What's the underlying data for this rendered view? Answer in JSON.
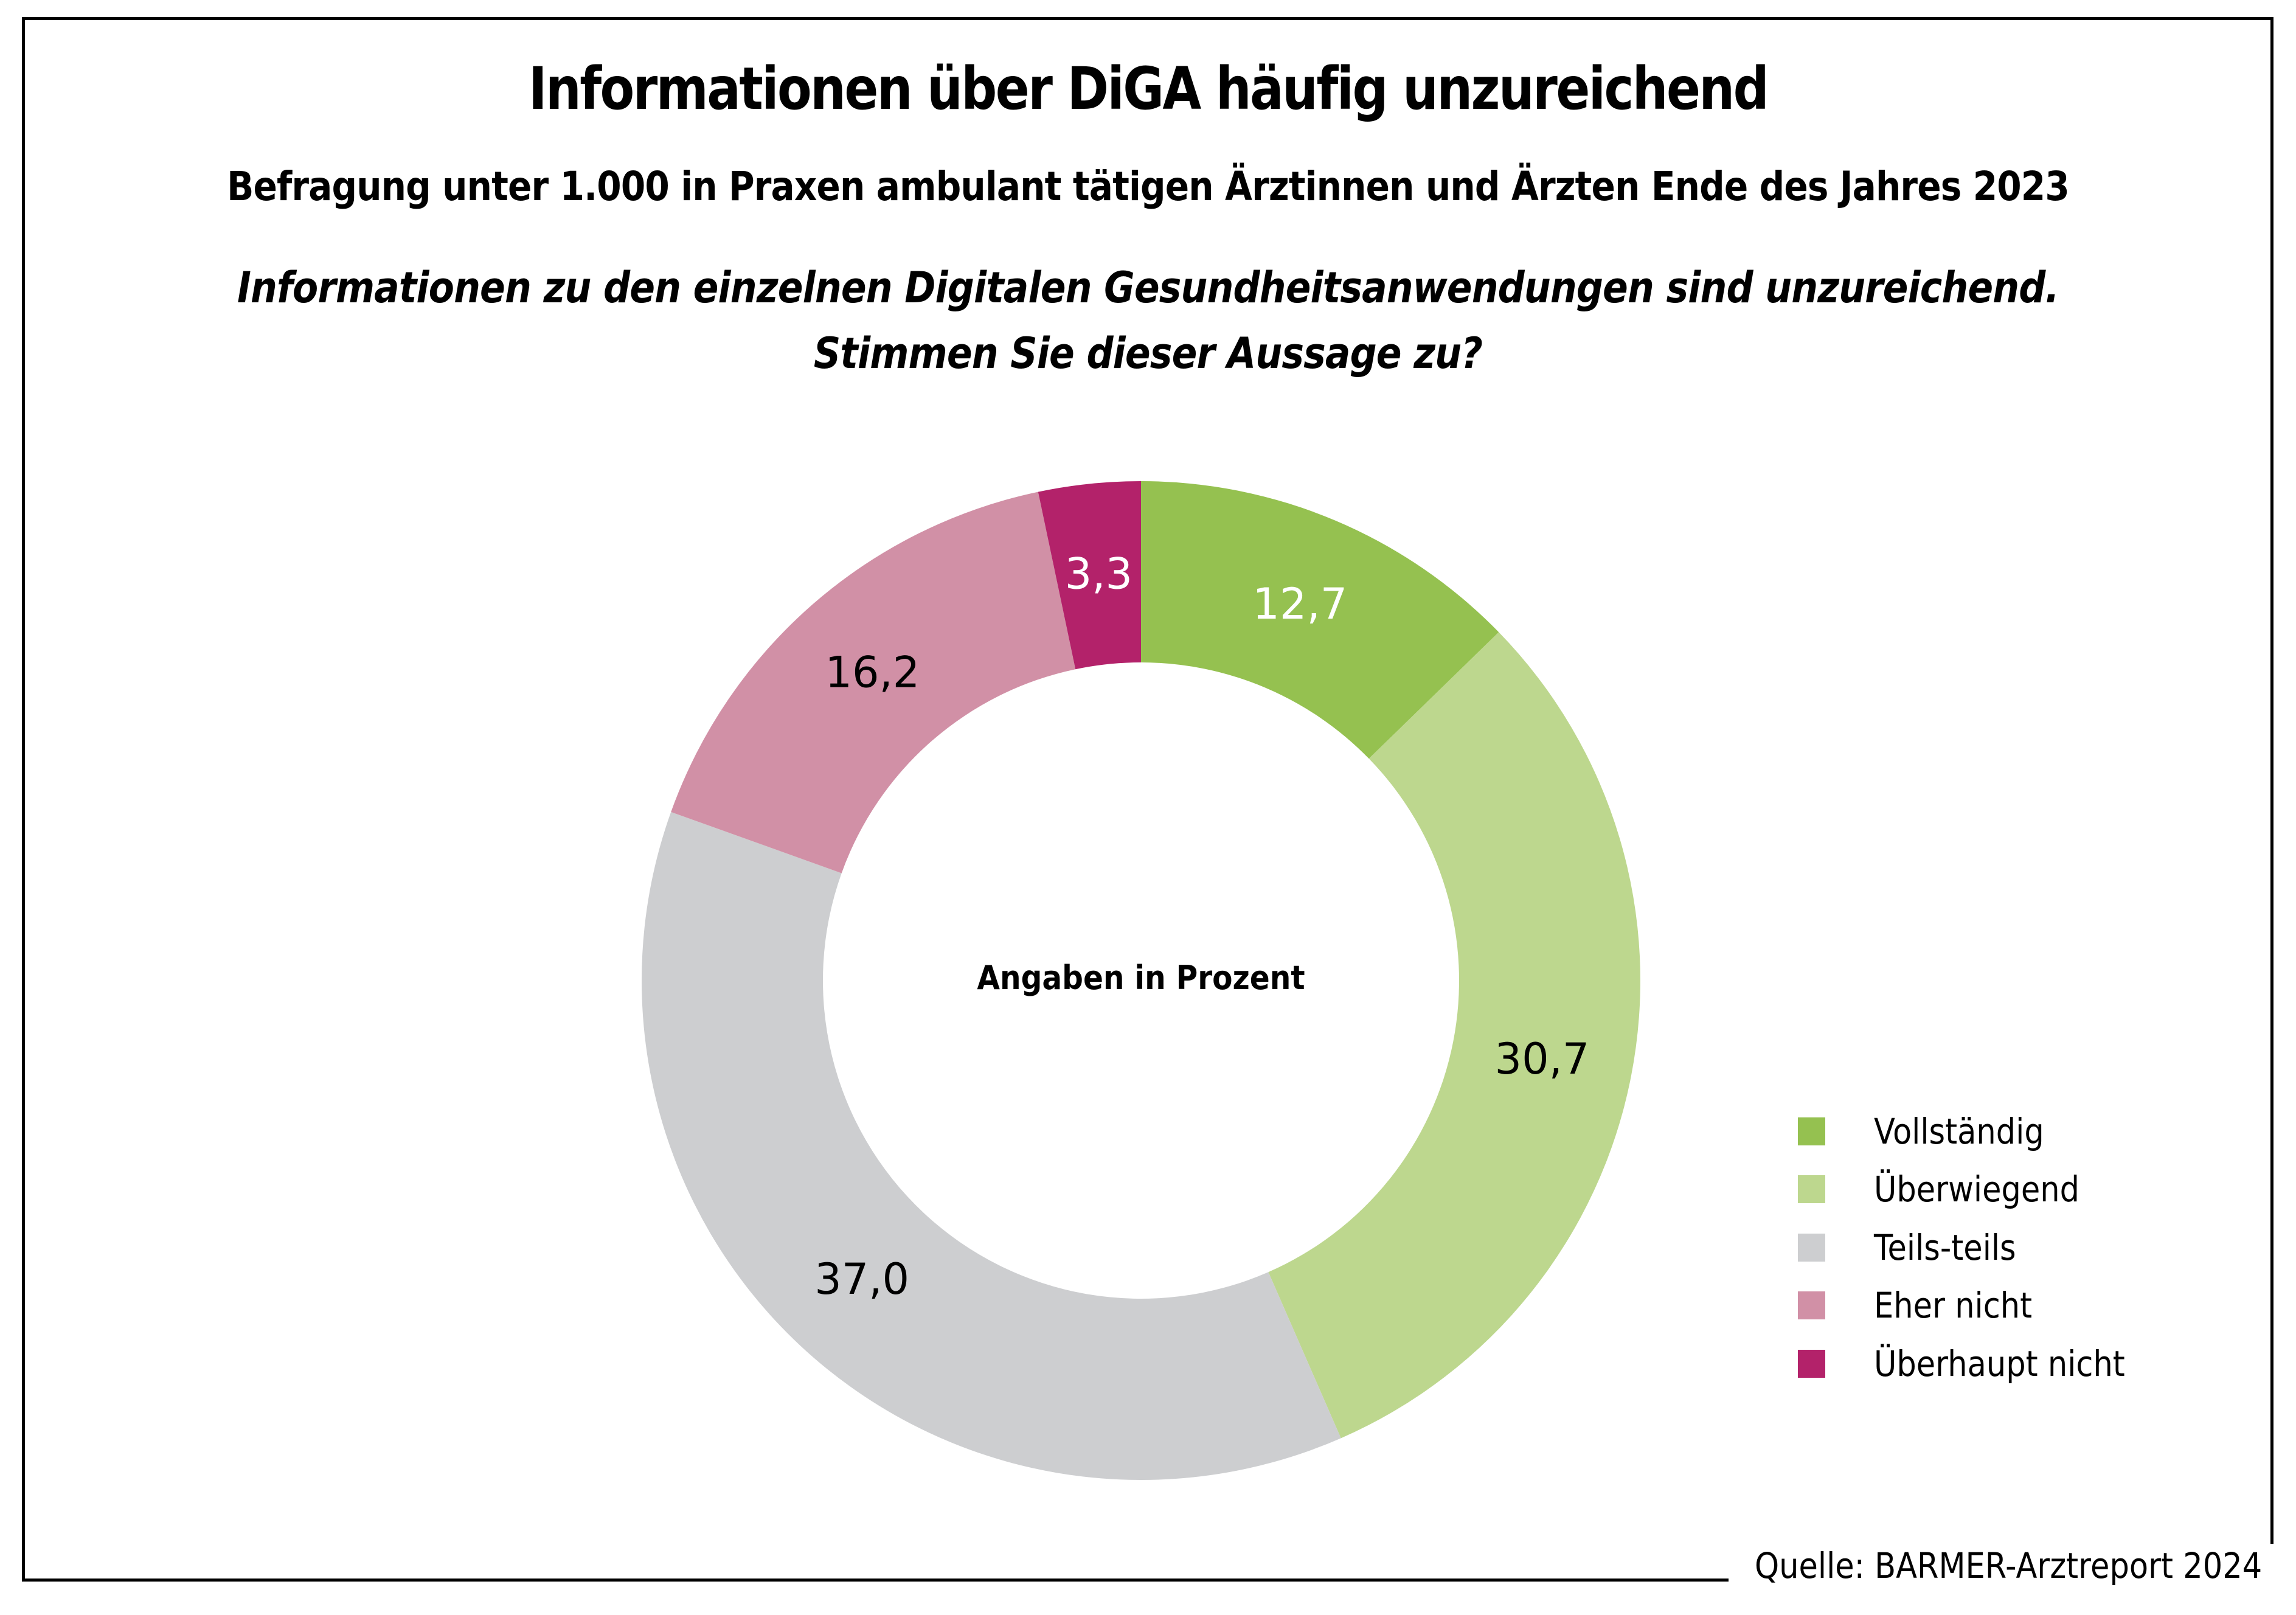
{
  "header": {
    "title": "Informationen über DiGA häufig unzureichend",
    "subtitle": "Befragung unter 1.000 in Praxen ambulant tätigen Ärztinnen und Ärzten Ende des Jahres 2023",
    "question_line1": "Informationen zu den einzelnen Digitalen Gesundheitsanwendungen sind unzureichend.",
    "question_line2": "Stimmen Sie dieser Aussage zu?"
  },
  "source": "Quelle: BARMER-Arztreport 2024",
  "chart_data": {
    "type": "pie",
    "variant": "donut",
    "title": "Informationen über DiGA häufig unzureichend",
    "center_label": "Angaben in Prozent",
    "unit": "percent",
    "start": "top (12 o'clock), clockwise",
    "legend_position": "right",
    "categories": [
      "Vollständig",
      "Überwiegend",
      "Teils-teils",
      "Eher nicht",
      "Überhaupt nicht"
    ],
    "values": [
      12.7,
      30.7,
      37.0,
      16.2,
      3.3
    ],
    "value_labels": [
      "12,7",
      "30,7",
      "37,0",
      "16,2",
      "3,3"
    ],
    "colors": [
      "#95c150",
      "#bdd78e",
      "#cdced0",
      "#d190a6",
      "#b3226a"
    ],
    "label_colors": [
      "#ffffff",
      "#000000",
      "#000000",
      "#000000",
      "#ffffff"
    ]
  }
}
